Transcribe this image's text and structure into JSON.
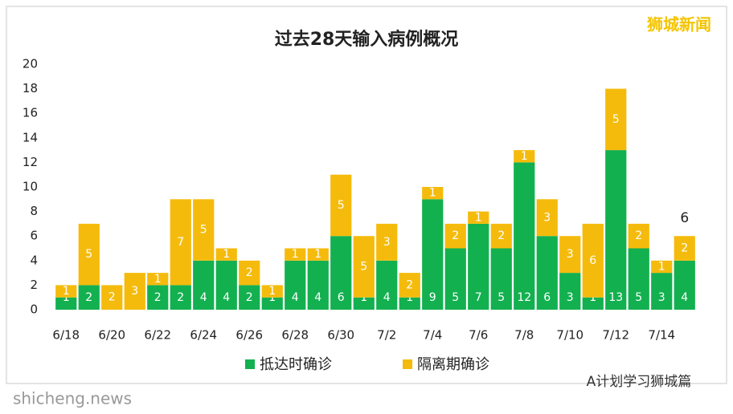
{
  "chart_data": {
    "type": "stacked-bar",
    "title": "过去28天输入病例概况",
    "categories": [
      "6/18",
      null,
      "6/20",
      null,
      "6/22",
      null,
      "6/24",
      null,
      "6/26",
      null,
      "6/28",
      null,
      "6/30",
      null,
      "7/2",
      null,
      "7/4",
      null,
      "7/6",
      null,
      "7/8",
      null,
      "7/10",
      null,
      "7/12",
      null,
      "7/14",
      null
    ],
    "series": [
      {
        "name": "抵达时确诊",
        "color": "#13b050",
        "values": [
          1,
          2,
          0,
          0,
          2,
          2,
          4,
          4,
          2,
          1,
          4,
          4,
          6,
          1,
          4,
          1,
          9,
          5,
          7,
          5,
          12,
          6,
          3,
          1,
          13,
          5,
          3,
          4
        ]
      },
      {
        "name": "隔离期确诊",
        "color": "#f5bb0c",
        "values": [
          1,
          5,
          2,
          3,
          1,
          7,
          5,
          1,
          2,
          1,
          1,
          1,
          5,
          5,
          3,
          2,
          1,
          2,
          1,
          2,
          1,
          3,
          3,
          6,
          5,
          2,
          1,
          2
        ]
      }
    ],
    "total_label": 6,
    "ylim": [
      0,
      20
    ],
    "yticks": [
      0,
      2,
      4,
      6,
      8,
      10,
      12,
      14,
      16,
      18,
      20
    ],
    "grid": false,
    "legend": "bottom",
    "annotations": [
      "狮城新闻",
      "A计划学习狮城篇",
      "shicheng.news"
    ]
  }
}
